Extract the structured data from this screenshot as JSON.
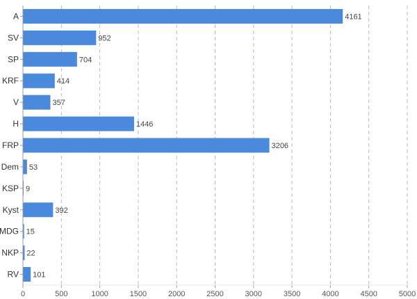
{
  "chart_data": {
    "type": "bar",
    "orientation": "horizontal",
    "title": "",
    "xlabel": "",
    "ylabel": "",
    "categories": [
      "A",
      "SV",
      "SP",
      "KRF",
      "V",
      "H",
      "FRP",
      "Dem",
      "KSP",
      "Kyst",
      "MDG",
      "NKP",
      "RV"
    ],
    "values": [
      4161,
      952,
      704,
      414,
      357,
      1446,
      3206,
      53,
      9,
      392,
      15,
      22,
      101
    ],
    "xlim": [
      0,
      5000
    ],
    "xticks": [
      0,
      500,
      1000,
      1500,
      2000,
      2500,
      3000,
      3500,
      4000,
      4500,
      5000
    ],
    "grid": "vertical dashed",
    "legend": "none",
    "bar_color": "#4a89dc",
    "grid_color": "#bbbbbb",
    "axis_color": "#999999"
  }
}
